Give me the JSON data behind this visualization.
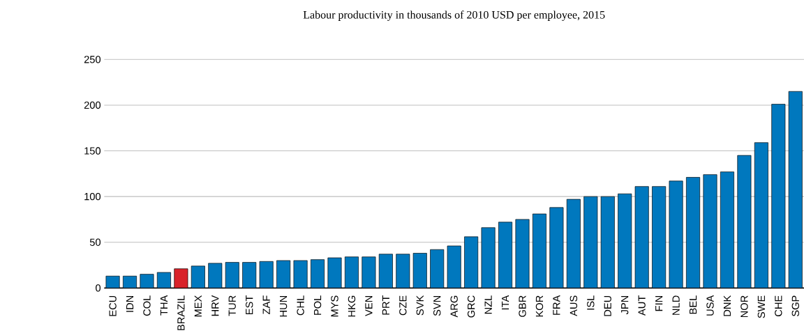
{
  "chart_data": {
    "type": "bar",
    "title": "Labour productivity in thousands of 2010 USD per employee, 2015",
    "categories": [
      "ECU",
      "IDN",
      "COL",
      "THA",
      "BRAZIL",
      "MEX",
      "HRV",
      "TUR",
      "EST",
      "ZAF",
      "HUN",
      "CHL",
      "POL",
      "MYS",
      "HKG",
      "VEN",
      "PRT",
      "CZE",
      "SVK",
      "SVN",
      "ARG",
      "GRC",
      "NZL",
      "ITA",
      "GBR",
      "KOR",
      "FRA",
      "AUS",
      "ISL",
      "DEU",
      "JPN",
      "AUT",
      "FIN",
      "NLD",
      "BEL",
      "USA",
      "DNK",
      "NOR",
      "SWE",
      "CHE",
      "SGP"
    ],
    "values": [
      13,
      13,
      15,
      17,
      21,
      24,
      27,
      28,
      28,
      29,
      30,
      30,
      31,
      33,
      34,
      34,
      37,
      37,
      38,
      42,
      46,
      56,
      66,
      72,
      75,
      81,
      88,
      97,
      100,
      100,
      103,
      111,
      111,
      117,
      121,
      124,
      127,
      145,
      159,
      201,
      215
    ],
    "colors": [
      "#0078be",
      "#0078be",
      "#0078be",
      "#0078be",
      "#d9232a",
      "#0078be",
      "#0078be",
      "#0078be",
      "#0078be",
      "#0078be",
      "#0078be",
      "#0078be",
      "#0078be",
      "#0078be",
      "#0078be",
      "#0078be",
      "#0078be",
      "#0078be",
      "#0078be",
      "#0078be",
      "#0078be",
      "#0078be",
      "#0078be",
      "#0078be",
      "#0078be",
      "#0078be",
      "#0078be",
      "#0078be",
      "#0078be",
      "#0078be",
      "#0078be",
      "#0078be",
      "#0078be",
      "#0078be",
      "#0078be",
      "#0078be",
      "#0078be",
      "#0078be",
      "#0078be",
      "#0078be",
      "#0078be"
    ],
    "ylim": [
      0,
      250
    ],
    "yticks": [
      0,
      50,
      100,
      150,
      200,
      250
    ],
    "grid": "y"
  }
}
